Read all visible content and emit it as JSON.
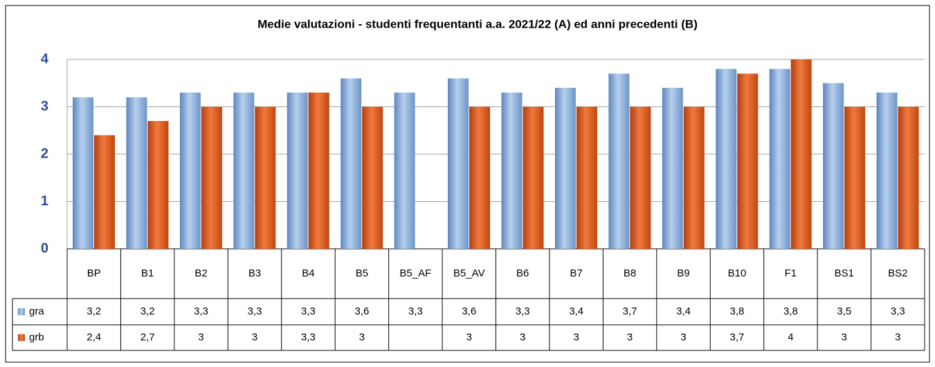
{
  "chart_data": {
    "type": "bar",
    "title": "Medie valutazioni - studenti frequentanti  a.a. 2021/22 (A) ed anni precedenti (B)",
    "categories": [
      "BP",
      "B1",
      "B2",
      "B3",
      "B4",
      "B5",
      "B5_AF",
      "B5_AV",
      "B6",
      "B7",
      "B8",
      "B9",
      "B10",
      "F1",
      "BS1",
      "BS2"
    ],
    "series": [
      {
        "name": "gra",
        "color": "#7fa8d8",
        "values": [
          3.2,
          3.2,
          3.3,
          3.3,
          3.3,
          3.6,
          3.3,
          3.6,
          3.3,
          3.4,
          3.7,
          3.4,
          3.8,
          3.8,
          3.5,
          3.3
        ],
        "value_labels": [
          "3,2",
          "3,2",
          "3,3",
          "3,3",
          "3,3",
          "3,6",
          "3,3",
          "3,6",
          "3,3",
          "3,4",
          "3,7",
          "3,4",
          "3,8",
          "3,8",
          "3,5",
          "3,3"
        ]
      },
      {
        "name": "grb",
        "color": "#e0561e",
        "values": [
          2.4,
          2.7,
          3,
          3,
          3.3,
          3,
          null,
          3,
          3,
          3,
          3,
          3,
          3.7,
          4,
          3,
          3
        ],
        "value_labels": [
          "2,4",
          "2,7",
          "3",
          "3",
          "3,3",
          "3",
          null,
          "3",
          "3",
          "3",
          "3",
          "3",
          "3,7",
          "4",
          "3",
          "3"
        ]
      }
    ],
    "ylim": [
      0,
      4
    ],
    "yticks": [
      0,
      1,
      2,
      3,
      4
    ],
    "grid": true
  }
}
